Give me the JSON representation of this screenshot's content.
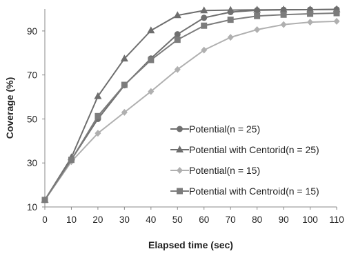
{
  "chart_data": {
    "type": "line",
    "title": "",
    "xlabel": "Elapsed time (sec)",
    "ylabel": "Coverage (%)",
    "x": [
      0,
      10,
      20,
      30,
      40,
      50,
      60,
      70,
      80,
      90,
      100,
      110
    ],
    "xlim": [
      0,
      110
    ],
    "ylim": [
      10,
      100
    ],
    "xticks": [
      "0",
      "10",
      "20",
      "30",
      "40",
      "50",
      "60",
      "70",
      "80",
      "90",
      "100",
      "110"
    ],
    "yticks": [
      "10",
      "30",
      "50",
      "70",
      "90"
    ],
    "grid": false,
    "legend_position": "center-right",
    "series": [
      {
        "name": "Potential(n = 25)",
        "marker": "circle",
        "color": "#707070",
        "values": [
          13.2,
          31.5,
          50.0,
          65.3,
          77.5,
          88.5,
          96.0,
          98.6,
          99.4,
          99.6,
          99.7,
          99.8
        ]
      },
      {
        "name": "Potential with Centorid(n = 25)",
        "marker": "triangle",
        "color": "#6e6e6e",
        "values": [
          13.2,
          32.5,
          60.3,
          77.4,
          90.2,
          97.1,
          99.3,
          99.5,
          99.6,
          99.7,
          99.7,
          99.8
        ]
      },
      {
        "name": "Potential(n = 15)",
        "marker": "diamond",
        "color": "#b0b0b0",
        "values": [
          13.2,
          30.6,
          43.5,
          53.0,
          62.5,
          72.5,
          81.3,
          87.1,
          90.6,
          92.9,
          94.0,
          94.4
        ]
      },
      {
        "name": "Potential with Centroid(n = 15)",
        "marker": "square",
        "color": "#7c7c7c",
        "values": [
          13.2,
          31.4,
          51.3,
          65.5,
          76.8,
          86.0,
          92.4,
          95.1,
          96.8,
          97.4,
          97.8,
          98.1
        ]
      }
    ]
  }
}
